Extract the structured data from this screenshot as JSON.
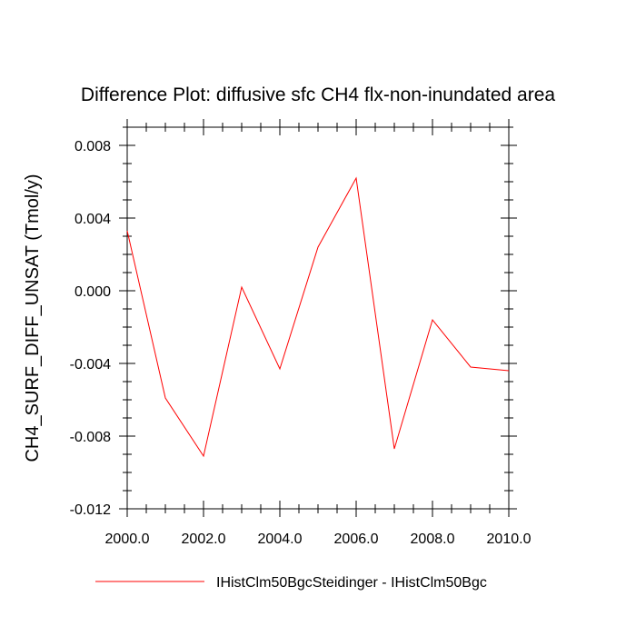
{
  "chart_data": {
    "type": "line",
    "title": "Difference Plot: diffusive sfc CH4 flx-non-inundated area",
    "ylabel": "CH4_SURF_DIFF_UNSAT  (Tmol/y)",
    "xlabel": "",
    "xlim": [
      2000,
      2010
    ],
    "ylim": [
      -0.012,
      0.009
    ],
    "x_ticks": [
      2000,
      2002,
      2004,
      2006,
      2008,
      2010
    ],
    "x_tick_labels": [
      "2000.0",
      "2002.0",
      "2004.0",
      "2006.0",
      "2008.0",
      "2010.0"
    ],
    "y_ticks": [
      -0.012,
      -0.008,
      -0.004,
      0.0,
      0.004,
      0.008
    ],
    "y_tick_labels": [
      "-0.012",
      "-0.008",
      "-0.004",
      "0.000",
      "0.004",
      "0.008"
    ],
    "grid": false,
    "legend_position": "bottom",
    "series": [
      {
        "name": "IHistClm50BgcSteidinger - IHistClm50Bgc",
        "color": "#ff0000",
        "x": [
          2000,
          2001,
          2002,
          2003,
          2004,
          2005,
          2006,
          2007,
          2008,
          2009,
          2010
        ],
        "y": [
          0.0033,
          -0.0059,
          -0.0091,
          0.0002,
          -0.0043,
          0.0024,
          0.0062,
          -0.0087,
          -0.0016,
          -0.0042,
          -0.0044
        ]
      }
    ]
  }
}
